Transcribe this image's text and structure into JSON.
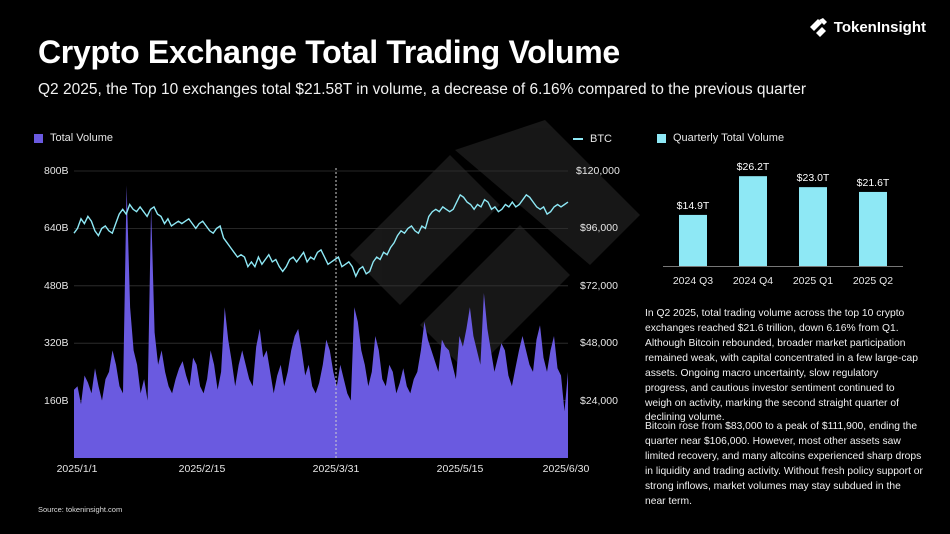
{
  "header": {
    "title": "Crypto Exchange Total Trading Volume",
    "subtitle": "Q2 2025, the Top 10 exchanges total $21.58T in volume, a decrease of 6.16% compared to the previous quarter",
    "logo_text": "TokenInsight"
  },
  "colors": {
    "volume": "#6a5ae0",
    "btc": "#8ee8f5",
    "bars": "#8ee8f5",
    "background": "#000000"
  },
  "chart_data": [
    {
      "type": "area",
      "legend": {
        "volume_label": "Total Volume",
        "btc_label": "BTC",
        "position": "top"
      },
      "left_axis": {
        "ticks": [
          "800B",
          "640B",
          "480B",
          "320B",
          "160B"
        ],
        "ylim": [
          0,
          800
        ]
      },
      "right_axis": {
        "ticks": [
          "$120,000",
          "$96,000",
          "$72,000",
          "$48,000",
          "$24,000"
        ],
        "ylim": [
          0,
          120000
        ]
      },
      "x_ticks": [
        "2025/1/1",
        "2025/2/15",
        "2025/3/31",
        "2025/5/15",
        "2025/6/30"
      ],
      "marker_line_at": "2025/3/31",
      "series": [
        {
          "name": "Total Volume",
          "unit": "B",
          "values": [
            190,
            200,
            150,
            230,
            210,
            180,
            250,
            200,
            160,
            220,
            240,
            300,
            260,
            200,
            180,
            760,
            420,
            300,
            260,
            180,
            220,
            160,
            700,
            350,
            260,
            300,
            240,
            200,
            180,
            220,
            250,
            270,
            230,
            200,
            280,
            260,
            200,
            180,
            220,
            300,
            260,
            190,
            240,
            420,
            330,
            270,
            200,
            260,
            300,
            260,
            220,
            200,
            310,
            360,
            280,
            300,
            240,
            180,
            230,
            260,
            200,
            240,
            300,
            340,
            360,
            300,
            230,
            260,
            200,
            180,
            210,
            260,
            330,
            300,
            240,
            200,
            260,
            220,
            180,
            160,
            420,
            380,
            300,
            260,
            200,
            240,
            340,
            300,
            220,
            200,
            260,
            240,
            180,
            210,
            250,
            200,
            180,
            220,
            240,
            300,
            380,
            330,
            300,
            270,
            240,
            330,
            310,
            300,
            260,
            220,
            340,
            310,
            360,
            420,
            340,
            300,
            260,
            460,
            360,
            300,
            240,
            280,
            320,
            300,
            230,
            200,
            250,
            300,
            340,
            300,
            260,
            240,
            330,
            370,
            280,
            240,
            300,
            340,
            250,
            230,
            130,
            240
          ]
        },
        {
          "name": "BTC",
          "unit": "$",
          "values": [
            94000,
            96000,
            100000,
            98000,
            101000,
            99000,
            95000,
            93000,
            96000,
            97000,
            95000,
            94000,
            98000,
            102000,
            104000,
            102000,
            106000,
            104000,
            103000,
            105000,
            103000,
            101000,
            104000,
            105000,
            102000,
            101000,
            98000,
            100000,
            97000,
            98000,
            99000,
            98000,
            99000,
            100000,
            98000,
            96000,
            98000,
            99000,
            97000,
            95000,
            94000,
            96000,
            97000,
            92000,
            90000,
            88000,
            86000,
            84000,
            85000,
            84000,
            80000,
            82000,
            80000,
            84000,
            81000,
            83000,
            85000,
            82000,
            83000,
            80000,
            78000,
            80000,
            83000,
            84000,
            82000,
            84000,
            86000,
            82000,
            84000,
            83000,
            86000,
            87000,
            84000,
            81000,
            82000,
            83000,
            84000,
            80000,
            81000,
            82000,
            80000,
            76000,
            79000,
            80000,
            77000,
            78000,
            82000,
            84000,
            83000,
            86000,
            85000,
            88000,
            90000,
            93000,
            95000,
            94000,
            96000,
            97000,
            95000,
            94000,
            97000,
            96000,
            101000,
            103000,
            104000,
            103000,
            105000,
            104000,
            103000,
            104000,
            107000,
            110000,
            109000,
            107000,
            106000,
            104000,
            106000,
            105000,
            108000,
            107000,
            104000,
            105000,
            103000,
            104000,
            106000,
            105000,
            107000,
            105000,
            106000,
            108000,
            110000,
            109000,
            107000,
            105000,
            104000,
            105000,
            102000,
            103000,
            105000,
            106000,
            105000,
            106000,
            107000
          ]
        }
      ]
    },
    {
      "type": "bar",
      "legend_label": "Quarterly Total Volume",
      "categories": [
        "2024 Q3",
        "2024 Q4",
        "2025 Q1",
        "2025 Q2"
      ],
      "values": [
        14.9,
        26.2,
        23.0,
        21.6
      ],
      "value_labels": [
        "$14.9T",
        "$26.2T",
        "$23.0T",
        "$21.6T"
      ],
      "ylim": [
        0,
        28
      ]
    }
  ],
  "commentary": {
    "p1": "In Q2 2025, total trading volume across the top 10 crypto exchanges reached $21.6 trillion, down 6.16% from Q1. Although Bitcoin rebounded, broader market participation remained weak, with capital concentrated in a few large-cap assets. Ongoing macro uncertainty, slow regulatory progress, and cautious investor sentiment continued to weigh on activity, marking the second straight quarter of declining volume.",
    "p2": "Bitcoin rose from $83,000 to a peak of $111,900, ending the quarter near $106,000. However, most other assets saw limited recovery, and many altcoins experienced sharp drops in liquidity and trading activity. Without fresh policy support or strong inflows, market volumes may stay subdued in the near term."
  },
  "footer": {
    "source": "Source: tokeninsight.com"
  }
}
